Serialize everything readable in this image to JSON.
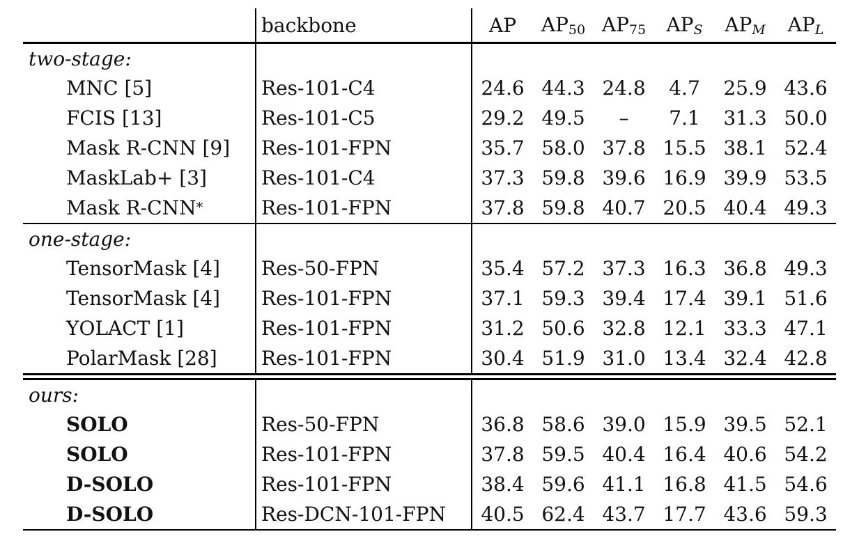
{
  "colors": {
    "background": "#ffffff",
    "text": "#111111",
    "rule_line": "#000000"
  },
  "table": {
    "columns": {
      "method": "",
      "backbone": "backbone",
      "metrics": [
        {
          "base": "AP",
          "sub": "",
          "italic_sub": false
        },
        {
          "base": "AP",
          "sub": "50",
          "italic_sub": false
        },
        {
          "base": "AP",
          "sub": "75",
          "italic_sub": false
        },
        {
          "base": "AP",
          "sub": "S",
          "italic_sub": true
        },
        {
          "base": "AP",
          "sub": "M",
          "italic_sub": true
        },
        {
          "base": "AP",
          "sub": "L",
          "italic_sub": true
        }
      ]
    },
    "sections": [
      {
        "label": "two-stage:",
        "rule_after": "single",
        "rows": [
          {
            "method": "MNC [5]",
            "sup": "",
            "bold": false,
            "backbone": "Res-101-C4",
            "values": [
              "24.6",
              "44.3",
              "24.8",
              "4.7",
              "25.9",
              "43.6"
            ]
          },
          {
            "method": "FCIS [13]",
            "sup": "",
            "bold": false,
            "backbone": "Res-101-C5",
            "values": [
              "29.2",
              "49.5",
              "–",
              "7.1",
              "31.3",
              "50.0"
            ]
          },
          {
            "method": "Mask R-CNN [9]",
            "sup": "",
            "bold": false,
            "backbone": "Res-101-FPN",
            "values": [
              "35.7",
              "58.0",
              "37.8",
              "15.5",
              "38.1",
              "52.4"
            ]
          },
          {
            "method": "MaskLab+ [3]",
            "sup": "",
            "bold": false,
            "backbone": "Res-101-C4",
            "values": [
              "37.3",
              "59.8",
              "39.6",
              "16.9",
              "39.9",
              "53.5"
            ]
          },
          {
            "method": "Mask R-CNN",
            "sup": "*",
            "bold": false,
            "backbone": "Res-101-FPN",
            "values": [
              "37.8",
              "59.8",
              "40.7",
              "20.5",
              "40.4",
              "49.3"
            ]
          }
        ]
      },
      {
        "label": "one-stage:",
        "rule_after": "double",
        "rows": [
          {
            "method": "TensorMask [4]",
            "sup": "",
            "bold": false,
            "backbone": "Res-50-FPN",
            "values": [
              "35.4",
              "57.2",
              "37.3",
              "16.3",
              "36.8",
              "49.3"
            ]
          },
          {
            "method": "TensorMask [4]",
            "sup": "",
            "bold": false,
            "backbone": "Res-101-FPN",
            "values": [
              "37.1",
              "59.3",
              "39.4",
              "17.4",
              "39.1",
              "51.6"
            ]
          },
          {
            "method": "YOLACT [1]",
            "sup": "",
            "bold": false,
            "backbone": "Res-101-FPN",
            "values": [
              "31.2",
              "50.6",
              "32.8",
              "12.1",
              "33.3",
              "47.1"
            ]
          },
          {
            "method": "PolarMask [28]",
            "sup": "",
            "bold": false,
            "backbone": "Res-101-FPN",
            "values": [
              "30.4",
              "51.9",
              "31.0",
              "13.4",
              "32.4",
              "42.8"
            ]
          }
        ]
      },
      {
        "label": "ours:",
        "rule_after": "bottom",
        "rows": [
          {
            "method": "SOLO",
            "sup": "",
            "bold": true,
            "backbone": "Res-50-FPN",
            "values": [
              "36.8",
              "58.6",
              "39.0",
              "15.9",
              "39.5",
              "52.1"
            ]
          },
          {
            "method": "SOLO",
            "sup": "",
            "bold": true,
            "backbone": "Res-101-FPN",
            "values": [
              "37.8",
              "59.5",
              "40.4",
              "16.4",
              "40.6",
              "54.2"
            ]
          },
          {
            "method": "D-SOLO",
            "sup": "",
            "bold": true,
            "backbone": "Res-101-FPN",
            "values": [
              "38.4",
              "59.6",
              "41.1",
              "16.8",
              "41.5",
              "54.6"
            ]
          },
          {
            "method": "D-SOLO",
            "sup": "",
            "bold": true,
            "backbone": "Res-DCN-101-FPN",
            "values": [
              "40.5",
              "62.4",
              "43.7",
              "17.7",
              "43.6",
              "59.3"
            ]
          }
        ]
      }
    ]
  }
}
